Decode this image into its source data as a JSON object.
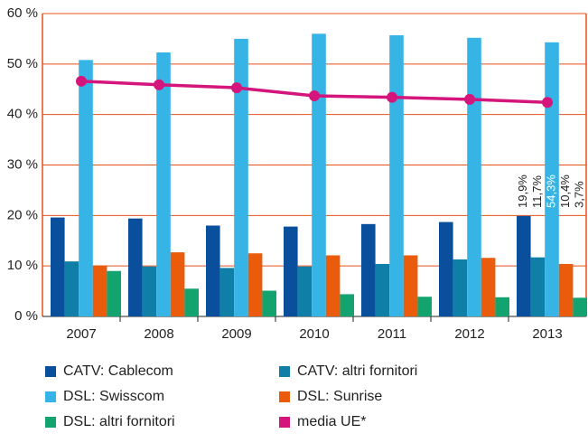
{
  "chart_data": {
    "type": "bar",
    "categories": [
      "2007",
      "2008",
      "2009",
      "2010",
      "2011",
      "2012",
      "2013"
    ],
    "series": [
      {
        "name": "CATV: Cablecom",
        "color": "#0a4f9c",
        "values": [
          19.6,
          19.4,
          18.0,
          17.8,
          18.3,
          18.7,
          19.9
        ],
        "value_labels": [
          null,
          null,
          null,
          null,
          null,
          null,
          "19,9%"
        ]
      },
      {
        "name": "CATV: altri fornitori",
        "color": "#0f7fa8",
        "values": [
          10.9,
          9.9,
          9.6,
          9.9,
          10.4,
          11.3,
          11.7
        ],
        "value_labels": [
          null,
          null,
          null,
          null,
          null,
          null,
          "11,7%"
        ]
      },
      {
        "name": "DSL: Swisscom",
        "color": "#36b4e5",
        "values": [
          50.8,
          52.3,
          55.0,
          56.0,
          55.7,
          55.2,
          54.3
        ],
        "value_labels": [
          null,
          null,
          null,
          null,
          null,
          null,
          "54,3%"
        ]
      },
      {
        "name": "DSL: Sunrise",
        "color": "#ea5b0c",
        "values": [
          10.1,
          12.7,
          12.5,
          12.1,
          12.1,
          11.6,
          10.4
        ],
        "value_labels": [
          null,
          null,
          null,
          null,
          null,
          null,
          "10,4%"
        ]
      },
      {
        "name": "DSL: altri fornitori",
        "color": "#13a36f",
        "values": [
          9.0,
          5.5,
          5.1,
          4.4,
          3.9,
          3.8,
          3.7
        ],
        "value_labels": [
          null,
          null,
          null,
          null,
          null,
          null,
          "3,7%"
        ]
      },
      {
        "name": "media UE*",
        "type": "line",
        "color": "#d4157c",
        "values": [
          46.6,
          45.9,
          45.3,
          43.7,
          43.4,
          43.0,
          42.4
        ]
      }
    ],
    "ylim": [
      0,
      60
    ],
    "yticks": [
      {
        "value": 0,
        "label": "0 %"
      },
      {
        "value": 10,
        "label": "10 %"
      },
      {
        "value": 20,
        "label": "20 %"
      },
      {
        "value": 30,
        "label": "30 %"
      },
      {
        "value": 40,
        "label": "40 %"
      },
      {
        "value": 50,
        "label": "50 %"
      },
      {
        "value": 60,
        "label": "60 %"
      }
    ],
    "grid": true,
    "axis_color": "#e8501a"
  }
}
